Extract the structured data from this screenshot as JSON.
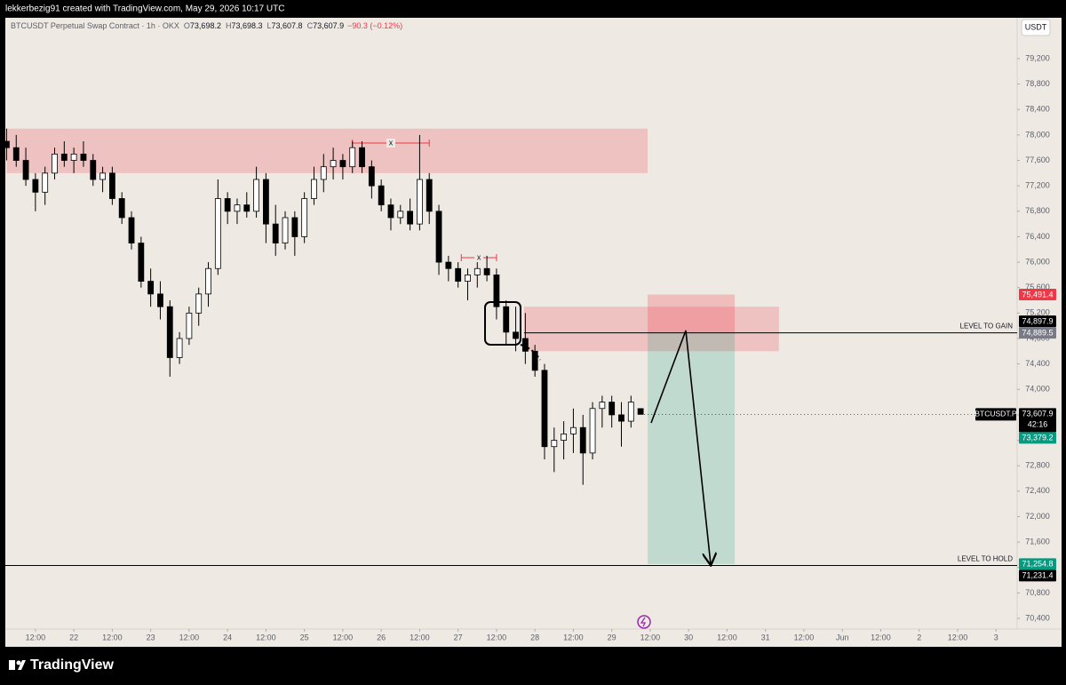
{
  "header": "lekkerbezig91 created with TradingView.com, May 29, 2026 10:17 UTC",
  "legend": {
    "symbol": "BTCUSDT Perpetual Swap Contract · 1h · OKX",
    "items": [
      {
        "key": "O",
        "value": "73,698.2"
      },
      {
        "key": "H",
        "value": "73,698.3"
      },
      {
        "key": "L",
        "value": "73,607.8"
      },
      {
        "key": "C",
        "value": "73,607.9"
      }
    ],
    "change": "−90.3 (−0.12%)"
  },
  "currency_button": "USDT",
  "footer": "TradingView",
  "chart_data": {
    "type": "candlestick",
    "x": [
      3,
      6,
      9,
      12,
      15,
      18,
      21,
      24,
      27,
      30,
      33,
      36,
      39,
      42,
      45,
      48,
      51,
      54,
      57,
      60,
      63,
      66,
      69,
      72,
      75,
      78,
      81,
      84,
      87,
      90,
      93,
      96,
      99,
      102,
      105,
      108,
      111,
      114,
      117,
      120,
      123,
      126,
      129,
      132,
      135,
      138,
      141,
      144,
      147,
      150,
      153,
      156,
      159,
      162,
      165,
      168,
      171,
      174,
      177,
      180,
      183,
      186,
      189,
      192,
      195,
      198,
      201
    ],
    "open": [
      77900,
      77800,
      77600,
      77300,
      77100,
      77400,
      77700,
      77600,
      77700,
      77600,
      77300,
      77400,
      77000,
      76700,
      76300,
      75700,
      75500,
      75300,
      74500,
      74800,
      75200,
      75500,
      75900,
      77000,
      76800,
      76900,
      76800,
      77300,
      76600,
      76300,
      76700,
      76400,
      77000,
      77300,
      77500,
      77600,
      77500,
      77800,
      77500,
      77200,
      76900,
      76700,
      76800,
      76600,
      77300,
      76800,
      76000,
      75900,
      75700,
      75800,
      75900,
      75800,
      75300,
      74900,
      74800,
      74600,
      74300,
      73100,
      73200,
      73300,
      73400,
      73000,
      73700,
      73800,
      73600,
      73500,
      73698.2
    ],
    "high": [
      78100,
      78000,
      77800,
      77400,
      77500,
      77800,
      77900,
      77800,
      77900,
      77700,
      77500,
      77500,
      77100,
      76800,
      76400,
      75900,
      75700,
      75400,
      74900,
      75300,
      75600,
      76000,
      77300,
      77100,
      77000,
      77100,
      77500,
      77400,
      76900,
      76800,
      76800,
      77100,
      77500,
      77700,
      77800,
      77700,
      77900,
      77900,
      77600,
      77300,
      77000,
      76900,
      77000,
      78000,
      77400,
      76900,
      76100,
      76000,
      75900,
      76000,
      76100,
      75900,
      75400,
      75300,
      75200,
      74700,
      74400,
      73400,
      73500,
      73700,
      73600,
      73800,
      73900,
      73900,
      73800,
      73900,
      73698.3
    ],
    "low": [
      77600,
      77500,
      77200,
      76800,
      76900,
      77300,
      77500,
      77400,
      77500,
      77200,
      77100,
      76900,
      76600,
      76200,
      75600,
      75300,
      75100,
      74200,
      74400,
      74700,
      75000,
      75300,
      75800,
      76600,
      76600,
      76700,
      76700,
      76300,
      76100,
      76200,
      76100,
      76300,
      76900,
      77100,
      77300,
      77300,
      77400,
      77400,
      77000,
      76800,
      76500,
      76600,
      76500,
      76500,
      76600,
      75800,
      75700,
      75600,
      75400,
      75600,
      75700,
      75100,
      74700,
      74600,
      74400,
      74200,
      72900,
      72700,
      72900,
      73000,
      72500,
      72900,
      73400,
      73400,
      73100,
      73400,
      73607.8
    ],
    "close": [
      77800,
      77600,
      77300,
      77100,
      77400,
      77700,
      77600,
      77700,
      77600,
      77300,
      77400,
      77000,
      76700,
      76300,
      75700,
      75500,
      75300,
      74500,
      74800,
      75200,
      75500,
      75900,
      77000,
      76800,
      76900,
      76800,
      77300,
      76600,
      76300,
      76700,
      76400,
      77000,
      77300,
      77500,
      77600,
      77500,
      77800,
      77500,
      77200,
      76900,
      76700,
      76800,
      76600,
      77300,
      76800,
      76000,
      75900,
      75700,
      75800,
      75900,
      75800,
      75300,
      74900,
      74800,
      74600,
      74300,
      73100,
      73200,
      73300,
      73400,
      73000,
      73700,
      73800,
      73600,
      73500,
      73800,
      73607.9
    ],
    "up_color": "#ffffff",
    "down_color": "#000000",
    "xlim": [
      2.6,
      318.6
    ],
    "ylim": [
      70233,
      79842
    ],
    "grid": false,
    "xticks": [
      {
        "value": 12,
        "label": "12:00"
      },
      {
        "value": 24,
        "label": "22"
      },
      {
        "value": 36,
        "label": "12:00"
      },
      {
        "value": 48,
        "label": "23"
      },
      {
        "value": 60,
        "label": "12:00"
      },
      {
        "value": 72,
        "label": "24"
      },
      {
        "value": 84,
        "label": "12:00"
      },
      {
        "value": 96,
        "label": "25"
      },
      {
        "value": 108,
        "label": "12:00"
      },
      {
        "value": 120,
        "label": "26"
      },
      {
        "value": 132,
        "label": "12:00"
      },
      {
        "value": 144,
        "label": "27"
      },
      {
        "value": 156,
        "label": "12:00"
      },
      {
        "value": 168,
        "label": "28"
      },
      {
        "value": 180,
        "label": "12:00"
      },
      {
        "value": 192,
        "label": "29"
      },
      {
        "value": 204,
        "label": "12:00"
      },
      {
        "value": 216,
        "label": "30"
      },
      {
        "value": 228,
        "label": "12:00"
      },
      {
        "value": 240,
        "label": "31"
      },
      {
        "value": 252,
        "label": "12:00"
      },
      {
        "value": 264,
        "label": "Jun"
      },
      {
        "value": 276,
        "label": "12:00"
      },
      {
        "value": 288,
        "label": "2"
      },
      {
        "value": 300,
        "label": "12:00"
      },
      {
        "value": 312,
        "label": "3"
      }
    ],
    "yticks": [
      {
        "value": 70400,
        "label": "70,400"
      },
      {
        "value": 70800,
        "label": "70,800"
      },
      {
        "value": 71200,
        "label": "71,200"
      },
      {
        "value": 71600,
        "label": "71,600"
      },
      {
        "value": 72000,
        "label": "72,000"
      },
      {
        "value": 72400,
        "label": "72,400"
      },
      {
        "value": 72800,
        "label": "72,800"
      },
      {
        "value": 73200,
        "label": "73,200"
      },
      {
        "value": 73600,
        "label": "73,600"
      },
      {
        "value": 74000,
        "label": "74,000"
      },
      {
        "value": 74400,
        "label": "74,400"
      },
      {
        "value": 74800,
        "label": "74,800"
      },
      {
        "value": 75200,
        "label": "75,200"
      },
      {
        "value": 75600,
        "label": "75,600"
      },
      {
        "value": 76000,
        "label": "76,000"
      },
      {
        "value": 76400,
        "label": "76,400"
      },
      {
        "value": 76800,
        "label": "76,800"
      },
      {
        "value": 77200,
        "label": "77,200"
      },
      {
        "value": 77600,
        "label": "77,600"
      },
      {
        "value": 78000,
        "label": "78,000"
      },
      {
        "value": 78400,
        "label": "78,400"
      },
      {
        "value": 78800,
        "label": "78,800"
      },
      {
        "value": 79200,
        "label": "79,200"
      }
    ],
    "zones": [
      {
        "from": 3,
        "to": 203.2,
        "top": 78100,
        "bottom": 77400,
        "color": "rgba(242,54,69,0.22)"
      },
      {
        "from": 164.6,
        "to": 244.2,
        "top": 75300,
        "bottom": 74600,
        "color": "rgba(242,54,69,0.22)"
      }
    ],
    "position": {
      "from": 203.2,
      "to": 230.4,
      "stop": 75491.4,
      "entry": 74889.5,
      "target": 71254.8,
      "stop_color": "rgba(242,54,69,0.25)",
      "target_color": "rgba(8,153,129,0.2)"
    },
    "levels": [
      {
        "label": "LEVEL  TO GAIN",
        "price": 74889.5,
        "from": 164.6
      },
      {
        "label": "LEVEL TO HOLD",
        "price": 71231.4,
        "from": 2.6
      }
    ],
    "markers": [
      {
        "label": "x",
        "price": 77873,
        "from": 111,
        "to": 135
      },
      {
        "label": "x",
        "price": 76071,
        "from": 145,
        "to": 156
      }
    ],
    "price_labels": [
      {
        "value": 75491.4,
        "label": "75,491.4",
        "color": "#f23645"
      },
      {
        "value": 74897.9,
        "label": "74,897.9",
        "color": "#000000"
      },
      {
        "value": 74889.5,
        "label": "74,889.5",
        "color": "#787b86"
      },
      {
        "value": 73379.2,
        "label": "73,379.2",
        "color": "#089981"
      },
      {
        "value": 71254.8,
        "label": "71,254.8",
        "color": "#089981"
      },
      {
        "value": 71231.4,
        "label": "71,231.4",
        "color": "#000000"
      }
    ],
    "last_price": {
      "value": 73607.9,
      "label": "73,607.9",
      "symbol": "BTCUSDT.P",
      "countdown": "42:16"
    }
  }
}
